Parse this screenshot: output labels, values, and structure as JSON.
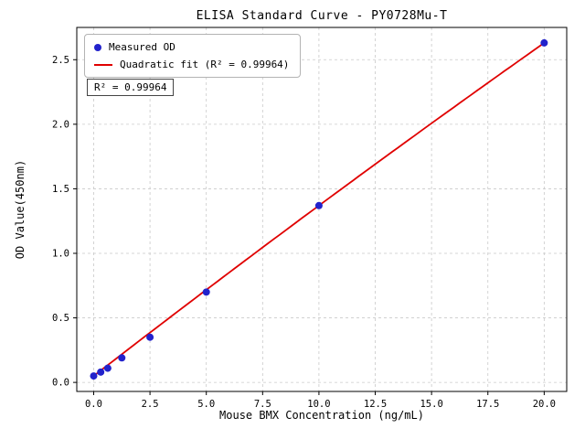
{
  "chart_data": {
    "type": "scatter",
    "title": "ELISA Standard Curve - PY0728Mu-T",
    "xlabel": "Mouse BMX Concentration (ng/mL)",
    "ylabel": "OD Value(450nm)",
    "xlim": [
      -0.75,
      21.0
    ],
    "ylim": [
      -0.07,
      2.75
    ],
    "grid": true,
    "x_ticks": {
      "values": [
        0,
        2.5,
        5,
        7.5,
        10,
        12.5,
        15,
        17.5,
        20
      ],
      "labels": [
        "0.0",
        "2.5",
        "5.0",
        "7.5",
        "10.0",
        "12.5",
        "15.0",
        "17.5",
        "20.0"
      ]
    },
    "y_ticks": {
      "values": [
        0,
        0.5,
        1,
        1.5,
        2,
        2.5
      ],
      "labels": [
        "0.0",
        "0.5",
        "1.0",
        "1.5",
        "2.0",
        "2.5"
      ]
    },
    "points": {
      "x": [
        0,
        0.3125,
        0.625,
        1.25,
        2.5,
        5,
        10,
        20
      ],
      "y": [
        0.05,
        0.08,
        0.11,
        0.19,
        0.35,
        0.7,
        1.37,
        2.63
      ]
    },
    "fit": {
      "type": "quadratic",
      "a": 0.05,
      "b": 0.135,
      "c": -0.0003,
      "x_range": [
        0,
        20
      ]
    },
    "legend": {
      "position": "upper-left",
      "entries": [
        {
          "label": "Measured OD",
          "marker": "point"
        },
        {
          "label": "Quadratic fit (R² = 0.99964)",
          "marker": "line"
        }
      ]
    },
    "annotation": "R² = 0.99964",
    "colors": {
      "points": "#2222cc",
      "fit_line": "#e00000",
      "grid": "#c9c9c9",
      "axis": "#000000"
    }
  }
}
